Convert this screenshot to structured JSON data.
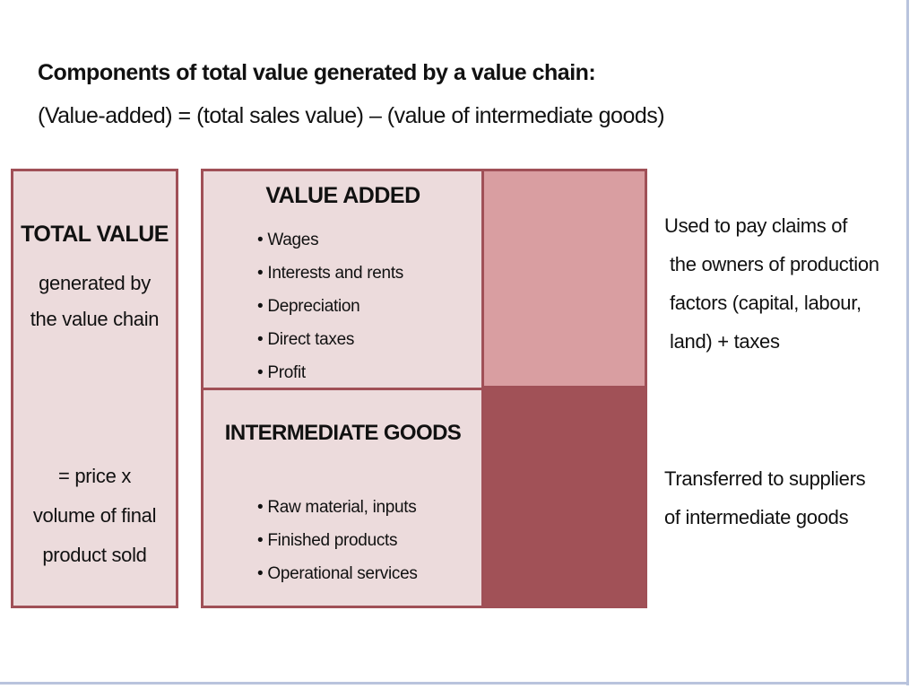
{
  "heading": "Components of total value generated by a value chain:",
  "formula": "(Value-added) = (total sales value) – (value of intermediate goods)",
  "colors": {
    "box_fill": "#ecdbdc",
    "box_border": "#a05057",
    "value_added_swatch": "#d99ea1",
    "intermediate_swatch": "#a15157",
    "frame": "#b9c4dd"
  },
  "total_value": {
    "title": "TOTAL VALUE",
    "sub_lines": [
      "generated by",
      "the value chain"
    ],
    "formula_lines": [
      "= price x",
      "volume of final",
      "product sold"
    ]
  },
  "value_added": {
    "title": "VALUE ADDED",
    "items": [
      "Wages",
      "Interests and rents",
      "Depreciation",
      "Direct taxes",
      "Profit"
    ],
    "note_lines": [
      "Used to pay claims of",
      "the owners of production",
      "factors (capital, labour,",
      "land) + taxes"
    ]
  },
  "intermediate_goods": {
    "title": "INTERMEDIATE GOODS",
    "items": [
      "Raw material, inputs",
      "Finished products",
      "Operational services"
    ],
    "note_lines": [
      "Transferred to suppliers",
      "of intermediate goods"
    ]
  }
}
